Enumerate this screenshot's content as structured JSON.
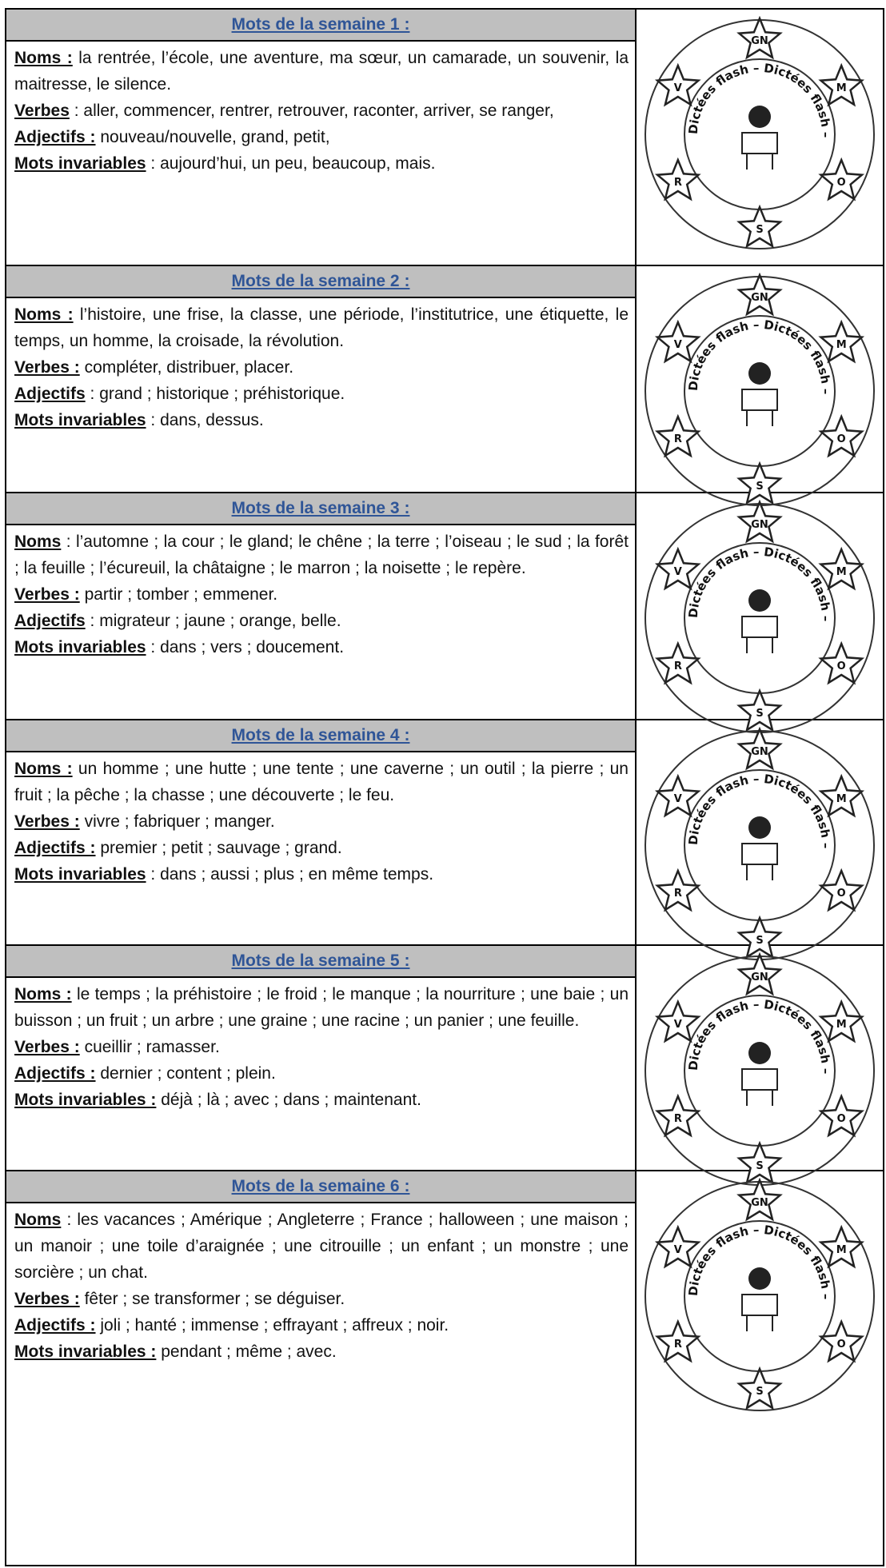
{
  "emblem": {
    "stars": [
      "GN",
      "M",
      "O",
      "S",
      "R",
      "V"
    ],
    "ring_text": "Dictées flash – Dictées flash –"
  },
  "weeks": [
    {
      "title": "Mots  de la semaine 1 :",
      "sections": [
        {
          "label": "Noms :",
          "text": "la rentrée, l’école, une aventure, ma sœur, un camarade, un souvenir, la maitresse, le silence."
        },
        {
          "label": "Verbes",
          "text": ": aller, commencer, rentrer,  retrouver, raconter, arriver, se ranger,"
        },
        {
          "label": "Adjectifs :",
          "text": "nouveau/nouvelle, grand, petit,"
        },
        {
          "label": "Mots invariables",
          "text": ": aujourd’hui, un peu, beaucoup,  mais."
        }
      ]
    },
    {
      "title": "Mots  de la semaine 2 :",
      "sections": [
        {
          "label": "Noms :",
          "text": "l’histoire, une frise, la classe, une période, l’institutrice, une étiquette, le temps, un homme, la croisade, la révolution."
        },
        {
          "label": "Verbes :",
          "text": "compléter, distribuer, placer."
        },
        {
          "label": "Adjectifs",
          "text": ": grand ; historique ; préhistorique."
        },
        {
          "label": "Mots invariables",
          "text": ": dans, dessus."
        }
      ]
    },
    {
      "title": "Mots  de la semaine 3 :",
      "sections": [
        {
          "label": "Noms",
          "text": ": l’automne ; la cour ; le gland; le chêne ; la terre ; l’oiseau ; le sud ; la forêt ; la feuille ; l’écureuil, la châtaigne ; le marron ; la noisette ; le repère."
        },
        {
          "label": "Verbes :",
          "text": "partir ; tomber ; emmener."
        },
        {
          "label": "Adjectifs",
          "text": ": migrateur ; jaune ; orange, belle."
        },
        {
          "label": "Mots invariables",
          "text": ": dans ; vers ; doucement."
        }
      ]
    },
    {
      "title": "Mots  de la semaine 4 :",
      "sections": [
        {
          "label": "Noms :",
          "text": "un homme ; une hutte ;  une tente ;  une caverne ; un outil ; la pierre ; un fruit ;  la pêche ; la chasse ; une découverte ; le feu."
        },
        {
          "label": "Verbes :",
          "text": "vivre ; fabriquer ; manger."
        },
        {
          "label": "Adjectifs :",
          "text": "premier ; petit ; sauvage ; grand."
        },
        {
          "label": "Mots invariables",
          "text": ": dans ; aussi ;  plus ; en même temps."
        }
      ]
    },
    {
      "title": "Mots  de la semaine 5 :",
      "sections": [
        {
          "label": "Noms :",
          "text": "le temps ; la préhistoire ; le froid ; le manque ; la nourriture ; une baie ; un buisson ; un fruit ; un arbre ; une graine ; une racine ; un panier ; une feuille."
        },
        {
          "label": "Verbes :",
          "text": "cueillir ; ramasser."
        },
        {
          "label": "Adjectifs :",
          "text": "dernier ; content ; plein."
        },
        {
          "label": "Mots invariables :",
          "text": "déjà ; là ; avec ; dans ; maintenant."
        }
      ]
    },
    {
      "title": "Mots  de la semaine 6 :",
      "sections": [
        {
          "label": "Noms",
          "text": ": les vacances ; Amérique ; Angleterre ; France ; halloween ; une maison ; un manoir ; une toile d’araignée ; une citrouille ; un enfant ; un monstre ; une sorcière ; un chat."
        },
        {
          "label": "Verbes :",
          "text": "fêter ; se transformer ; se déguiser."
        },
        {
          "label": "Adjectifs :",
          "text": "joli ; hanté ; immense ; effrayant ; affreux ; noir."
        },
        {
          "label": "Mots invariables :",
          "text": "pendant ; même ; avec."
        }
      ]
    }
  ]
}
